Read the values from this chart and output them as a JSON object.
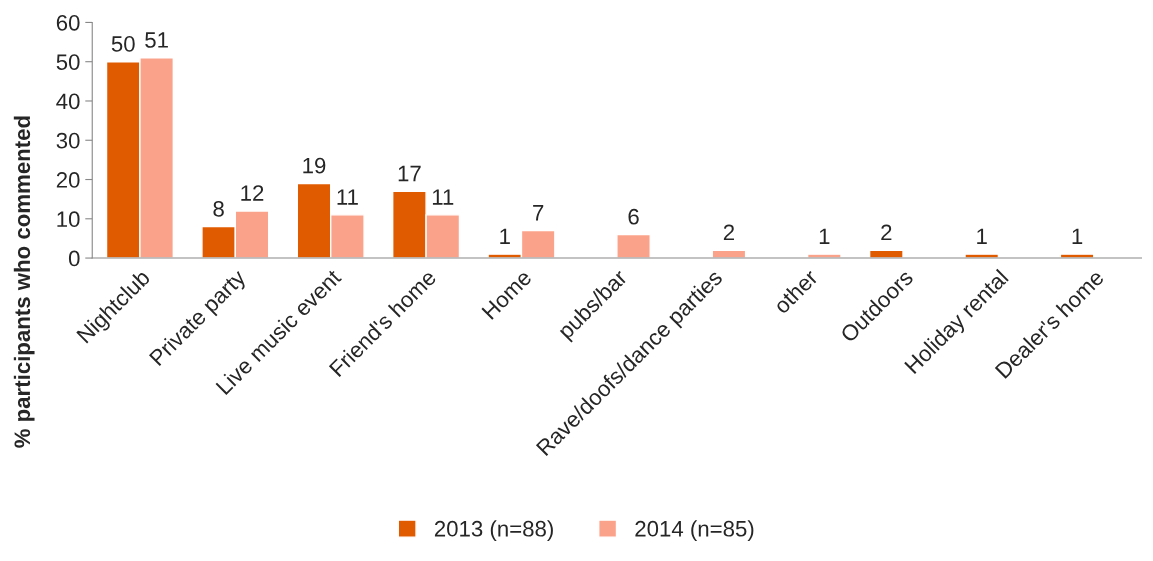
{
  "chart_data": {
    "type": "bar",
    "ylabel": "% participants who commented",
    "categories": [
      "Nightclub",
      "Private party",
      "Live music event",
      "Friend's home",
      "Home",
      "pubs/bar",
      "Rave/doofs/dance parties",
      "other",
      "Outdoors",
      "Holiday rental",
      "Dealer's home"
    ],
    "series": [
      {
        "name": "2013 (n=88)",
        "color": "#e05a00",
        "values": [
          50,
          8,
          19,
          17,
          1,
          null,
          null,
          null,
          2,
          1,
          1
        ],
        "value_labels": [
          "50",
          "8",
          "19",
          "17",
          "1",
          null,
          null,
          null,
          "2",
          "1",
          "1"
        ]
      },
      {
        "name": "2014 (n=85)",
        "color": "#fba38a",
        "values": [
          51,
          12,
          11,
          11,
          7,
          6,
          2,
          1,
          null,
          null,
          null
        ],
        "value_labels": [
          "51",
          "12",
          "11",
          "11",
          "7",
          "6",
          "2",
          "1",
          null,
          null,
          null
        ]
      }
    ],
    "ylim": [
      0,
      60
    ],
    "yticks": [
      0,
      10,
      20,
      30,
      40,
      50,
      60
    ],
    "grid": false,
    "legend": "bottom"
  }
}
